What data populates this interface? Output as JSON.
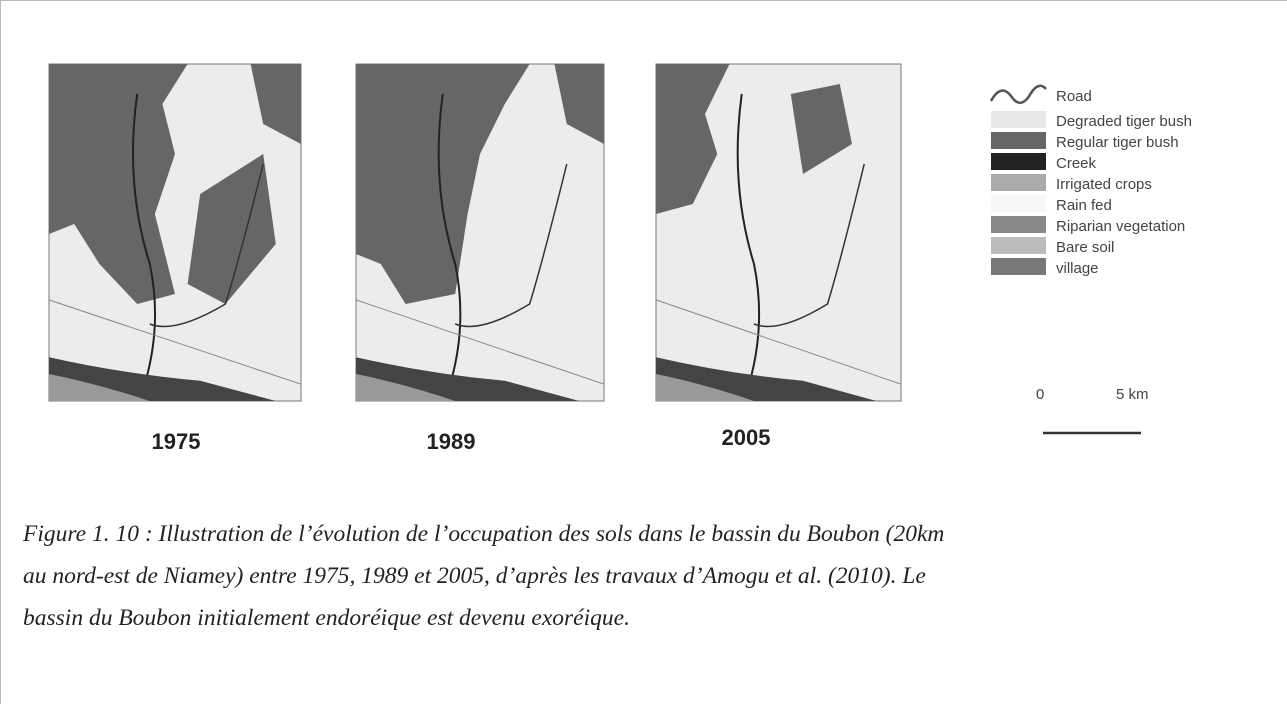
{
  "figure": {
    "maps": [
      {
        "year": "1975"
      },
      {
        "year": "1989"
      },
      {
        "year": "2005"
      }
    ],
    "legend": [
      "Road",
      "Degraded tiger bush",
      "Regular tiger bush",
      "Creek",
      "Irrigated crops",
      "Rain fed",
      "Riparian vegetation",
      "Bare soil",
      "village"
    ],
    "scale": {
      "start": "0",
      "end": "5 km"
    }
  },
  "caption": [
    "Figure 1. 10 : Illustration de l’évolution de l’occupation des sols dans le bassin du Boubon (20km",
    "au nord-est de Niamey) entre 1975, 1989 et 2005, d’après les travaux d’Amogu et al. (2010). Le",
    "bassin du Boubon initialement endoréique est devenu exoréique."
  ]
}
